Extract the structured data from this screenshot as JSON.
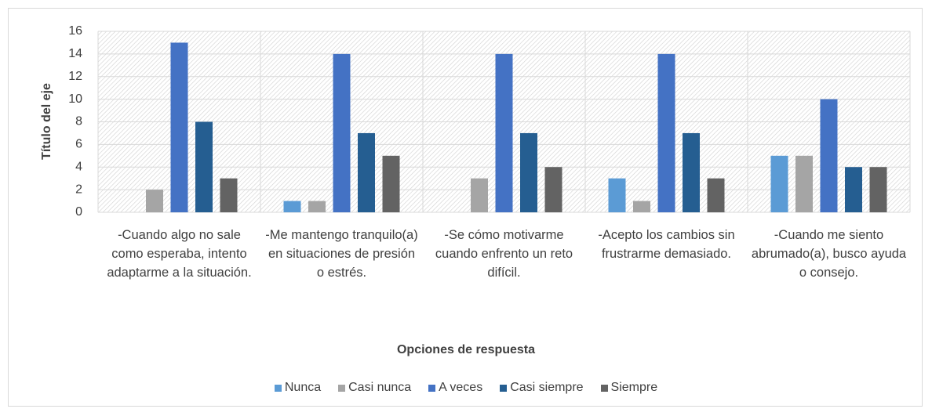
{
  "chart_data": {
    "type": "bar",
    "y_label": "Título del eje",
    "x_label": "Opciones de respuesta",
    "categories": [
      "-Cuando algo no sale como esperaba, intento adaptarme a la situación.",
      "-Me mantengo tranquilo(a) en situaciones de presión o estrés.",
      "-Se cómo motivarme cuando enfrento un reto difícil.",
      "-Acepto los cambios sin frustrarme demasiado.",
      "-Cuando me siento abrumado(a), busco ayuda o consejo."
    ],
    "series": [
      {
        "name": "Nunca",
        "color": "#5b9bd5",
        "values": [
          0,
          1,
          0,
          3,
          5
        ]
      },
      {
        "name": "Casi nunca",
        "color": "#a5a5a5",
        "values": [
          2,
          1,
          3,
          1,
          5
        ]
      },
      {
        "name": "A veces",
        "color": "#4472c4",
        "values": [
          15,
          14,
          14,
          14,
          10
        ]
      },
      {
        "name": "Casi siempre",
        "color": "#255e91",
        "values": [
          8,
          7,
          7,
          7,
          4
        ]
      },
      {
        "name": "Siempre",
        "color": "#636363",
        "values": [
          3,
          5,
          4,
          3,
          4
        ]
      }
    ],
    "ylim": [
      0,
      16
    ],
    "yticks": [
      0,
      2,
      4,
      6,
      8,
      10,
      12,
      14,
      16
    ],
    "grid": true,
    "legend": "bottom"
  }
}
